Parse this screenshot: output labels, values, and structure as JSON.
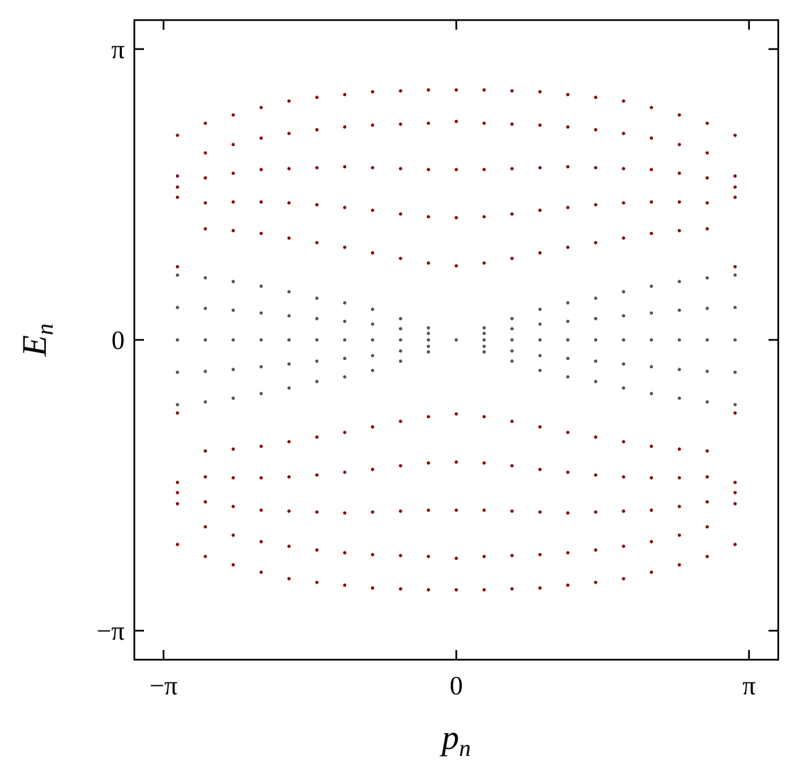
{
  "chart_data": {
    "type": "scatter",
    "xlabel": {
      "base": "p",
      "sub": "n"
    },
    "ylabel": {
      "base": "E",
      "sub": "n"
    },
    "xlim": [
      -3.455,
      3.455
    ],
    "ylim": [
      -3.455,
      3.455
    ],
    "xticks": [
      {
        "value": -3.14159,
        "label": "−π"
      },
      0,
      {
        "value": 3.14159,
        "label": "π"
      }
    ],
    "yticks": [
      {
        "value": -3.14159,
        "label": "−π"
      },
      0,
      {
        "value": 3.14159,
        "label": "π"
      }
    ],
    "grid": false,
    "series": [
      {
        "color": "#8b0a0a",
        "x": [
          -2.992,
          -2.992,
          -2.992,
          -2.992,
          -2.992,
          -2.992,
          -2.992,
          -2.992,
          -2.992,
          -2.992,
          -2.693,
          -2.693,
          -2.693,
          -2.693,
          -2.693,
          -2.693,
          -2.693,
          -2.693,
          -2.693,
          -2.693,
          -2.394,
          -2.394,
          -2.394,
          -2.394,
          -2.394,
          -2.394,
          -2.394,
          -2.394,
          -2.394,
          -2.394,
          -2.094,
          -2.094,
          -2.094,
          -2.094,
          -2.094,
          -2.094,
          -2.094,
          -2.094,
          -2.094,
          -2.094,
          -1.795,
          -1.795,
          -1.795,
          -1.795,
          -1.795,
          -1.795,
          -1.795,
          -1.795,
          -1.795,
          -1.795,
          -1.496,
          -1.496,
          -1.496,
          -1.496,
          -1.496,
          -1.496,
          -1.496,
          -1.496,
          -1.496,
          -1.496,
          -1.197,
          -1.197,
          -1.197,
          -1.197,
          -1.197,
          -1.197,
          -1.197,
          -1.197,
          -1.197,
          -1.197,
          -0.898,
          -0.898,
          -0.898,
          -0.898,
          -0.898,
          -0.898,
          -0.898,
          -0.898,
          -0.898,
          -0.898,
          -0.598,
          -0.598,
          -0.598,
          -0.598,
          -0.598,
          -0.598,
          -0.598,
          -0.598,
          -0.598,
          -0.598,
          -0.299,
          -0.299,
          -0.299,
          -0.299,
          -0.299,
          -0.299,
          -0.299,
          -0.299,
          -0.299,
          -0.299,
          0,
          0,
          0,
          0,
          0,
          0,
          0,
          0,
          0,
          0,
          0.299,
          0.299,
          0.299,
          0.299,
          0.299,
          0.299,
          0.299,
          0.299,
          0.299,
          0.299,
          0.598,
          0.598,
          0.598,
          0.598,
          0.598,
          0.598,
          0.598,
          0.598,
          0.598,
          0.598,
          0.898,
          0.898,
          0.898,
          0.898,
          0.898,
          0.898,
          0.898,
          0.898,
          0.898,
          0.898,
          1.197,
          1.197,
          1.197,
          1.197,
          1.197,
          1.197,
          1.197,
          1.197,
          1.197,
          1.197,
          1.496,
          1.496,
          1.496,
          1.496,
          1.496,
          1.496,
          1.496,
          1.496,
          1.496,
          1.496,
          1.795,
          1.795,
          1.795,
          1.795,
          1.795,
          1.795,
          1.795,
          1.795,
          1.795,
          1.795,
          2.094,
          2.094,
          2.094,
          2.094,
          2.094,
          2.094,
          2.094,
          2.094,
          2.094,
          2.094,
          2.394,
          2.394,
          2.394,
          2.394,
          2.394,
          2.394,
          2.394,
          2.394,
          2.394,
          2.394,
          2.693,
          2.693,
          2.693,
          2.693,
          2.693,
          2.693,
          2.693,
          2.693,
          2.693,
          2.693,
          2.992,
          2.992,
          2.992,
          2.992,
          2.992,
          2.992,
          2.992,
          2.992,
          2.992,
          2.992
        ],
        "values": [
          2.21,
          1.77,
          1.65,
          1.54,
          0.79,
          -2.21,
          -1.77,
          -1.65,
          -1.54,
          -0.79,
          2.34,
          2.02,
          1.75,
          1.48,
          1.2,
          -2.34,
          -2.02,
          -1.75,
          -1.48,
          -1.2,
          2.43,
          2.11,
          1.8,
          1.49,
          1.18,
          -2.43,
          -2.11,
          -1.8,
          -1.49,
          -1.18,
          2.51,
          2.18,
          1.84,
          1.49,
          1.15,
          -2.51,
          -2.18,
          -1.84,
          -1.49,
          -1.15,
          2.58,
          2.23,
          1.85,
          1.48,
          1.1,
          -2.58,
          -2.23,
          -1.85,
          -1.48,
          -1.1,
          2.62,
          2.27,
          1.86,
          1.46,
          1.05,
          -2.62,
          -2.27,
          -1.86,
          -1.46,
          -1.05,
          2.65,
          2.3,
          1.87,
          1.43,
          1.0,
          -2.65,
          -2.3,
          -1.87,
          -1.43,
          -1.0,
          2.68,
          2.32,
          1.86,
          1.4,
          0.94,
          -2.68,
          -2.32,
          -1.86,
          -1.4,
          -0.94,
          2.69,
          2.33,
          1.85,
          1.36,
          0.88,
          -2.69,
          -2.33,
          -1.85,
          -1.36,
          -0.88,
          2.7,
          2.34,
          1.84,
          1.33,
          0.83,
          -2.7,
          -2.34,
          -1.84,
          -1.33,
          -0.83,
          2.7,
          2.36,
          1.84,
          1.32,
          0.8,
          -2.7,
          -2.36,
          -1.84,
          -1.32,
          -0.8,
          2.7,
          2.34,
          1.84,
          1.33,
          0.83,
          -2.7,
          -2.34,
          -1.84,
          -1.33,
          -0.83,
          2.69,
          2.33,
          1.85,
          1.36,
          0.88,
          -2.69,
          -2.33,
          -1.85,
          -1.36,
          -0.88,
          2.68,
          2.32,
          1.86,
          1.4,
          0.94,
          -2.68,
          -2.32,
          -1.86,
          -1.4,
          -0.94,
          2.65,
          2.3,
          1.87,
          1.43,
          1.0,
          -2.65,
          -2.3,
          -1.87,
          -1.43,
          -1.0,
          2.62,
          2.27,
          1.86,
          1.46,
          1.05,
          -2.62,
          -2.27,
          -1.86,
          -1.46,
          -1.05,
          2.58,
          2.23,
          1.85,
          1.48,
          1.1,
          -2.58,
          -2.23,
          -1.85,
          -1.48,
          -1.1,
          2.51,
          2.18,
          1.84,
          1.49,
          1.15,
          -2.51,
          -2.18,
          -1.84,
          -1.49,
          -1.15,
          2.43,
          2.11,
          1.8,
          1.49,
          1.18,
          -2.43,
          -2.11,
          -1.8,
          -1.49,
          -1.18,
          2.34,
          2.02,
          1.75,
          1.48,
          1.2,
          -2.34,
          -2.02,
          -1.75,
          -1.48,
          -1.2,
          2.21,
          1.77,
          1.65,
          1.54,
          0.79,
          -2.21,
          -1.77,
          -1.65,
          -1.54,
          -0.79
        ]
      },
      {
        "color": "#555555",
        "x": [
          -2.992,
          -2.992,
          -2.992,
          -2.992,
          -2.992,
          -2.693,
          -2.693,
          -2.693,
          -2.693,
          -2.693,
          -2.394,
          -2.394,
          -2.394,
          -2.394,
          -2.394,
          -2.094,
          -2.094,
          -2.094,
          -2.094,
          -2.094,
          -1.795,
          -1.795,
          -1.795,
          -1.795,
          -1.795,
          -1.496,
          -1.496,
          -1.496,
          -1.496,
          -1.496,
          -1.197,
          -1.197,
          -1.197,
          -1.197,
          -1.197,
          -0.898,
          -0.898,
          -0.898,
          -0.898,
          -0.898,
          -0.598,
          -0.598,
          -0.598,
          -0.598,
          -0.598,
          -0.299,
          -0.299,
          -0.299,
          -0.299,
          -0.299,
          0,
          0.299,
          0.299,
          0.299,
          0.299,
          0.299,
          0.598,
          0.598,
          0.598,
          0.598,
          0.598,
          0.898,
          0.898,
          0.898,
          0.898,
          0.898,
          1.197,
          1.197,
          1.197,
          1.197,
          1.197,
          1.496,
          1.496,
          1.496,
          1.496,
          1.496,
          1.795,
          1.795,
          1.795,
          1.795,
          1.795,
          2.094,
          2.094,
          2.094,
          2.094,
          2.094,
          2.394,
          2.394,
          2.394,
          2.394,
          2.394,
          2.693,
          2.693,
          2.693,
          2.693,
          2.693,
          2.992,
          2.992,
          2.992,
          2.992,
          2.992
        ],
        "values": [
          0.7,
          0.35,
          0,
          -0.35,
          -0.7,
          0.67,
          0.34,
          0,
          -0.34,
          -0.67,
          0.63,
          0.32,
          0,
          -0.32,
          -0.63,
          0.58,
          0.29,
          0,
          -0.29,
          -0.58,
          0.52,
          0.26,
          0,
          -0.26,
          -0.52,
          0.45,
          0.23,
          0,
          -0.23,
          -0.45,
          0.4,
          0.2,
          0,
          -0.2,
          -0.4,
          0.33,
          0.17,
          0,
          -0.17,
          -0.33,
          0.23,
          0.12,
          0,
          -0.12,
          -0.23,
          0.13,
          0.07,
          0,
          -0.07,
          -0.13,
          0,
          0.13,
          0.07,
          0,
          -0.07,
          -0.13,
          0.23,
          0.12,
          0,
          -0.12,
          -0.23,
          0.33,
          0.17,
          0,
          -0.17,
          -0.33,
          0.4,
          0.2,
          0,
          -0.2,
          -0.4,
          0.45,
          0.23,
          0,
          -0.23,
          -0.45,
          0.52,
          0.26,
          0,
          -0.26,
          -0.52,
          0.58,
          0.29,
          0,
          -0.29,
          -0.58,
          0.63,
          0.32,
          0,
          -0.32,
          -0.63,
          0.67,
          0.34,
          0,
          -0.34,
          -0.67,
          0.7,
          0.35,
          0,
          -0.35,
          -0.7
        ]
      }
    ]
  }
}
